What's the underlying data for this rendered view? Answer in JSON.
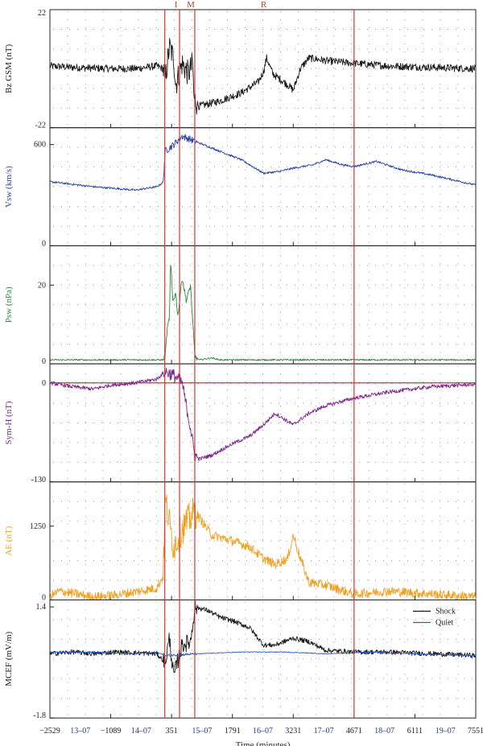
{
  "chart_data": {
    "type": "line",
    "xlabel": "Time (minutes)",
    "x_ticks": [
      -2529,
      -1089,
      351,
      1791,
      3231,
      4671,
      6111,
      7551
    ],
    "xlim": [
      -2529,
      7551
    ],
    "event_markers": [
      {
        "label": "I",
        "x": 190
      },
      {
        "label": "M",
        "x": 540
      },
      {
        "label": "",
        "x": 900
      },
      {
        "label": "R",
        "x": 4671
      }
    ],
    "r_label_x": 2530,
    "day_labels": [
      {
        "label": "13–07",
        "x": -1809
      },
      {
        "label": "14–07",
        "x": -369
      },
      {
        "label": "15–07",
        "x": 1071
      },
      {
        "label": "16–07",
        "x": 2511
      },
      {
        "label": "17–07",
        "x": 3951
      },
      {
        "label": "18–07",
        "x": 5391
      },
      {
        "label": "19–07",
        "x": 6831
      }
    ],
    "panels": [
      {
        "ylabel": "Bz GSM (nT)",
        "color": "#1a1a1a",
        "ylim": [
          -22,
          22
        ],
        "ticks": [
          -22,
          22
        ],
        "series": [
          {
            "name": "",
            "color": "#1a1a1a",
            "noise": 1.4,
            "points": [
              [
                -2529,
                1
              ],
              [
                -2000,
                0.5
              ],
              [
                -1500,
                0.2
              ],
              [
                -1000,
                0
              ],
              [
                -500,
                0
              ],
              [
                0,
                1
              ],
              [
                150,
                0
              ],
              [
                200,
                -4
              ],
              [
                300,
                8
              ],
              [
                400,
                4
              ],
              [
                450,
                -6
              ],
              [
                600,
                2
              ],
              [
                750,
                -2
              ],
              [
                850,
                2
              ],
              [
                880,
                -11
              ],
              [
                1000,
                -14
              ],
              [
                1500,
                -12
              ],
              [
                2000,
                -9
              ],
              [
                2400,
                -5
              ],
              [
                2530,
                -1
              ],
              [
                2600,
                4
              ],
              [
                2750,
                -2
              ],
              [
                3100,
                -6
              ],
              [
                3231,
                -8
              ],
              [
                3400,
                0
              ],
              [
                3600,
                4
              ],
              [
                4000,
                3
              ],
              [
                4671,
                2
              ],
              [
                5500,
                1
              ],
              [
                6500,
                0.5
              ],
              [
                7551,
                0
              ]
            ]
          }
        ]
      },
      {
        "ylabel": "Vsw (km/s)",
        "color": "#2a46a8",
        "ylim": [
          0,
          700
        ],
        "ticks": [
          0,
          600
        ],
        "series": [
          {
            "name": "",
            "color": "#2a46a8",
            "noise": 6,
            "points": [
              [
                -2529,
                380
              ],
              [
                -1500,
                350
              ],
              [
                -500,
                330
              ],
              [
                0,
                350
              ],
              [
                150,
                375
              ],
              [
                200,
                560
              ],
              [
                400,
                600
              ],
              [
                600,
                650
              ],
              [
                900,
                620
              ],
              [
                1500,
                560
              ],
              [
                2000,
                510
              ],
              [
                2530,
                430
              ],
              [
                2900,
                440
              ],
              [
                3231,
                460
              ],
              [
                3700,
                480
              ],
              [
                4000,
                510
              ],
              [
                4400,
                480
              ],
              [
                4671,
                470
              ],
              [
                5200,
                500
              ],
              [
                5800,
                450
              ],
              [
                6500,
                420
              ],
              [
                7551,
                360
              ]
            ]
          }
        ]
      },
      {
        "ylabel": "Psw (nPa)",
        "color": "#2a8a3a",
        "ylim": [
          0,
          30
        ],
        "ticks": [
          0,
          20
        ],
        "series": [
          {
            "name": "",
            "color": "#2a8a3a",
            "noise": 0.2,
            "points": [
              [
                -2529,
                1
              ],
              [
                0,
                1
              ],
              [
                150,
                1
              ],
              [
                200,
                2
              ],
              [
                240,
                8
              ],
              [
                300,
                12
              ],
              [
                330,
                26
              ],
              [
                380,
                16
              ],
              [
                450,
                18
              ],
              [
                500,
                12
              ],
              [
                600,
                22
              ],
              [
                700,
                16
              ],
              [
                800,
                20
              ],
              [
                900,
                2
              ],
              [
                1000,
                1
              ],
              [
                1300,
                1.5
              ],
              [
                1500,
                1
              ],
              [
                7551,
                1
              ]
            ]
          }
        ]
      },
      {
        "ylabel": "Sym-H (nT)",
        "color": "#7b2a8c",
        "ylim": [
          -130,
          25
        ],
        "ticks": [
          -130,
          0
        ],
        "ref_line": 0,
        "series": [
          {
            "name": "",
            "color": "#7b2a8c",
            "noise": 2.5,
            "points": [
              [
                -2529,
                0
              ],
              [
                -2000,
                -5
              ],
              [
                -1500,
                -8
              ],
              [
                -1089,
                -3
              ],
              [
                -500,
                0
              ],
              [
                0,
                5
              ],
              [
                200,
                15
              ],
              [
                400,
                10
              ],
              [
                600,
                0
              ],
              [
                800,
                -60
              ],
              [
                900,
                -95
              ],
              [
                1000,
                -100
              ],
              [
                1300,
                -95
              ],
              [
                1791,
                -80
              ],
              [
                2200,
                -70
              ],
              [
                2530,
                -55
              ],
              [
                2800,
                -40
              ],
              [
                3231,
                -55
              ],
              [
                3600,
                -40
              ],
              [
                4000,
                -30
              ],
              [
                4671,
                -20
              ],
              [
                5500,
                -12
              ],
              [
                6500,
                -5
              ],
              [
                7551,
                -2
              ]
            ]
          }
        ]
      },
      {
        "ylabel": "AE (nT)",
        "color": "#f0a020",
        "ylim": [
          0,
          2000
        ],
        "ticks": [
          0,
          1250
        ],
        "series": [
          {
            "name": "",
            "color": "#f0a020",
            "noise": 80,
            "points": [
              [
                -2529,
                60
              ],
              [
                -2300,
                150
              ],
              [
                -1900,
                100
              ],
              [
                -1500,
                50
              ],
              [
                -1000,
                80
              ],
              [
                -400,
                150
              ],
              [
                0,
                200
              ],
              [
                150,
                400
              ],
              [
                200,
                1700
              ],
              [
                400,
                900
              ],
              [
                600,
                1200
              ],
              [
                900,
                1500
              ],
              [
                1300,
                1100
              ],
              [
                1791,
                1000
              ],
              [
                2200,
                900
              ],
              [
                2530,
                700
              ],
              [
                2800,
                600
              ],
              [
                3100,
                700
              ],
              [
                3231,
                1100
              ],
              [
                3400,
                700
              ],
              [
                3600,
                300
              ],
              [
                4000,
                250
              ],
              [
                4671,
                100
              ],
              [
                5500,
                150
              ],
              [
                6500,
                100
              ],
              [
                7551,
                50
              ]
            ]
          }
        ]
      },
      {
        "ylabel": "MCEF (mV/m)",
        "color": "#1a1a1a",
        "ylim": [
          -1.8,
          1.6
        ],
        "ticks": [
          -1.8,
          1.4
        ],
        "legend": [
          "Shock",
          "Quiet"
        ],
        "series": [
          {
            "name": "Shock",
            "color": "#1a1a1a",
            "noise": 0.07,
            "points": [
              [
                -2529,
                0.05
              ],
              [
                -2000,
                0.1
              ],
              [
                -1500,
                0.05
              ],
              [
                -1000,
                0.1
              ],
              [
                0,
                0.05
              ],
              [
                200,
                -0.2
              ],
              [
                300,
                0.5
              ],
              [
                400,
                -0.6
              ],
              [
                600,
                0.3
              ],
              [
                800,
                0.4
              ],
              [
                900,
                1.4
              ],
              [
                1200,
                1.3
              ],
              [
                1500,
                1.1
              ],
              [
                1791,
                1.0
              ],
              [
                2200,
                0.8
              ],
              [
                2530,
                0.3
              ],
              [
                2800,
                0.3
              ],
              [
                3231,
                0.5
              ],
              [
                3600,
                0.4
              ],
              [
                4000,
                0.15
              ],
              [
                4671,
                0.1
              ],
              [
                5500,
                0.1
              ],
              [
                6500,
                0.05
              ],
              [
                7551,
                0.0
              ]
            ]
          },
          {
            "name": "Quiet",
            "color": "#2f5fbf",
            "noise": 0.01,
            "points": [
              [
                -2529,
                0.1
              ],
              [
                -1500,
                0.1
              ],
              [
                -500,
                0.05
              ],
              [
                0,
                0.1
              ],
              [
                200,
                0.0
              ],
              [
                1000,
                0.05
              ],
              [
                2000,
                0.1
              ],
              [
                3000,
                0.1
              ],
              [
                4000,
                0.05
              ],
              [
                5000,
                0.1
              ],
              [
                6000,
                0.05
              ],
              [
                7551,
                0.0
              ]
            ]
          }
        ]
      }
    ]
  }
}
